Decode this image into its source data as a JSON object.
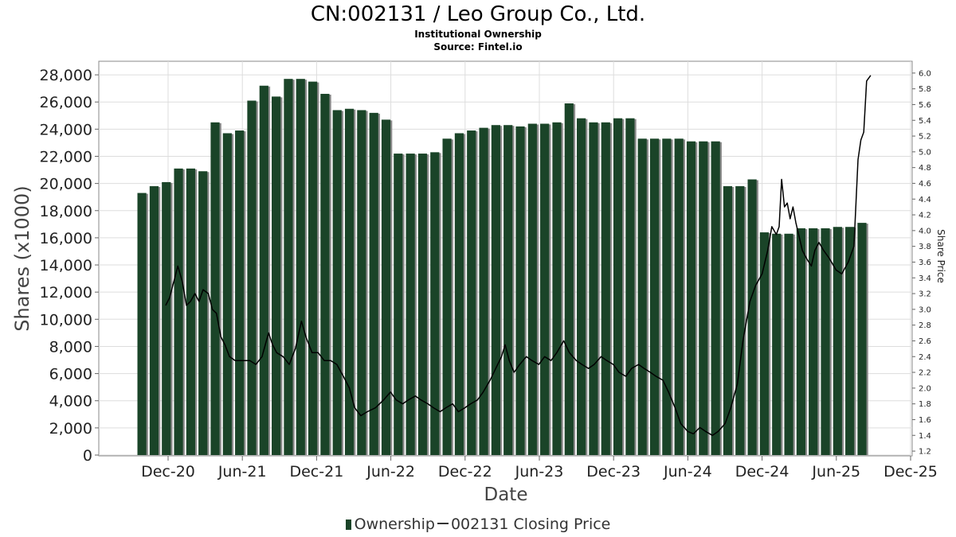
{
  "header": {
    "title": "CN:002131 / Leo Group Co., Ltd.",
    "subtitle1": "Institutional Ownership",
    "subtitle2": "Source: Fintel.io"
  },
  "legend": {
    "ownership_label": "Ownership",
    "price_label": "002131 Closing Price"
  },
  "colors": {
    "bar": "#1a4428",
    "bar_shadow": "#8a8a8a",
    "price_line": "#000000",
    "grid": "#dddddd"
  },
  "chart_data": {
    "type": "bar",
    "xlabel": "Date",
    "ylabel": "Shares (x1000)",
    "y2label": "Share Price",
    "ylim": [
      0,
      29000
    ],
    "y2lim": [
      1.15,
      6.15
    ],
    "x_tick_labels": [
      "Dec-20",
      "Jun-21",
      "Dec-21",
      "Jun-22",
      "Dec-22",
      "Jun-23",
      "Dec-23",
      "Jun-24",
      "Dec-24",
      "Jun-25",
      "Dec-25"
    ],
    "y_tick_labels": [
      "0",
      "2,000",
      "4,000",
      "6,000",
      "8,000",
      "10,000",
      "12,000",
      "14,000",
      "16,000",
      "18,000",
      "20,000",
      "22,000",
      "24,000",
      "26,000",
      "28,000"
    ],
    "y2_tick_labels": [
      "1.2",
      "1.4",
      "1.6",
      "1.8",
      "2.0",
      "2.2",
      "2.4",
      "2.6",
      "2.8",
      "3.0",
      "3.2",
      "3.4",
      "3.6",
      "3.8",
      "4.0",
      "4.2",
      "4.4",
      "4.6",
      "4.8",
      "5.0",
      "5.2",
      "5.4",
      "5.6",
      "5.8",
      "6.0"
    ],
    "grid": true,
    "legend_position": "bottom",
    "series": [
      {
        "name": "Ownership",
        "values": [
          19300,
          19800,
          20100,
          21100,
          21100,
          20900,
          24500,
          23700,
          23900,
          26100,
          27200,
          26400,
          27700,
          27700,
          27500,
          26600,
          25400,
          25500,
          25400,
          25200,
          24700,
          22200,
          22200,
          22200,
          22300,
          23300,
          23700,
          23900,
          24100,
          24300,
          24300,
          24200,
          24400,
          24400,
          24500,
          25900,
          24800,
          24500,
          24500,
          24800,
          24800,
          23300,
          23300,
          23300,
          23300,
          23100,
          23100,
          23100,
          19800,
          19800,
          20300,
          16400,
          16300,
          16300,
          16700,
          16700,
          16700,
          16800,
          16800,
          17100
        ]
      },
      {
        "name": "002131 Closing Price",
        "points": [
          [
            "2020-11-25",
            3.05
          ],
          [
            "2020-12-05",
            3.15
          ],
          [
            "2020-12-15",
            3.35
          ],
          [
            "2020-12-25",
            3.55
          ],
          [
            "2021-01-05",
            3.35
          ],
          [
            "2021-01-15",
            3.05
          ],
          [
            "2021-01-25",
            3.1
          ],
          [
            "2021-02-05",
            3.2
          ],
          [
            "2021-02-15",
            3.1
          ],
          [
            "2021-02-25",
            3.25
          ],
          [
            "2021-03-10",
            3.2
          ],
          [
            "2021-03-20",
            3.0
          ],
          [
            "2021-03-30",
            2.95
          ],
          [
            "2021-04-10",
            2.65
          ],
          [
            "2021-04-20",
            2.55
          ],
          [
            "2021-05-01",
            2.4
          ],
          [
            "2021-05-15",
            2.35
          ],
          [
            "2021-06-01",
            2.35
          ],
          [
            "2021-06-20",
            2.35
          ],
          [
            "2021-07-05",
            2.3
          ],
          [
            "2021-07-20",
            2.4
          ],
          [
            "2021-08-05",
            2.7
          ],
          [
            "2021-08-15",
            2.55
          ],
          [
            "2021-08-25",
            2.45
          ],
          [
            "2021-09-10",
            2.4
          ],
          [
            "2021-09-25",
            2.3
          ],
          [
            "2021-10-10",
            2.5
          ],
          [
            "2021-10-25",
            2.85
          ],
          [
            "2021-11-05",
            2.65
          ],
          [
            "2021-11-20",
            2.45
          ],
          [
            "2021-12-05",
            2.45
          ],
          [
            "2021-12-20",
            2.35
          ],
          [
            "2022-01-05",
            2.35
          ],
          [
            "2022-01-20",
            2.3
          ],
          [
            "2022-02-05",
            2.15
          ],
          [
            "2022-02-20",
            2.0
          ],
          [
            "2022-03-05",
            1.75
          ],
          [
            "2022-03-20",
            1.65
          ],
          [
            "2022-04-05",
            1.7
          ],
          [
            "2022-04-25",
            1.75
          ],
          [
            "2022-05-15",
            1.85
          ],
          [
            "2022-06-01",
            1.95
          ],
          [
            "2022-06-15",
            1.85
          ],
          [
            "2022-07-01",
            1.8
          ],
          [
            "2022-07-15",
            1.85
          ],
          [
            "2022-08-01",
            1.9
          ],
          [
            "2022-08-15",
            1.85
          ],
          [
            "2022-09-01",
            1.8
          ],
          [
            "2022-09-15",
            1.75
          ],
          [
            "2022-10-01",
            1.7
          ],
          [
            "2022-10-15",
            1.75
          ],
          [
            "2022-11-01",
            1.8
          ],
          [
            "2022-11-15",
            1.7
          ],
          [
            "2022-12-01",
            1.75
          ],
          [
            "2022-12-15",
            1.8
          ],
          [
            "2023-01-01",
            1.85
          ],
          [
            "2023-01-15",
            1.95
          ],
          [
            "2023-02-01",
            2.1
          ],
          [
            "2023-02-15",
            2.25
          ],
          [
            "2023-03-01",
            2.4
          ],
          [
            "2023-03-10",
            2.55
          ],
          [
            "2023-03-20",
            2.35
          ],
          [
            "2023-04-01",
            2.2
          ],
          [
            "2023-04-15",
            2.3
          ],
          [
            "2023-05-01",
            2.4
          ],
          [
            "2023-05-15",
            2.35
          ],
          [
            "2023-06-01",
            2.3
          ],
          [
            "2023-06-15",
            2.4
          ],
          [
            "2023-07-01",
            2.35
          ],
          [
            "2023-07-15",
            2.45
          ],
          [
            "2023-08-01",
            2.6
          ],
          [
            "2023-08-15",
            2.45
          ],
          [
            "2023-09-01",
            2.35
          ],
          [
            "2023-09-15",
            2.3
          ],
          [
            "2023-10-01",
            2.25
          ],
          [
            "2023-10-15",
            2.3
          ],
          [
            "2023-11-01",
            2.4
          ],
          [
            "2023-11-15",
            2.35
          ],
          [
            "2023-12-01",
            2.3
          ],
          [
            "2023-12-15",
            2.2
          ],
          [
            "2024-01-01",
            2.15
          ],
          [
            "2024-01-15",
            2.25
          ],
          [
            "2024-02-01",
            2.3
          ],
          [
            "2024-02-15",
            2.25
          ],
          [
            "2024-03-01",
            2.2
          ],
          [
            "2024-03-15",
            2.15
          ],
          [
            "2024-04-01",
            2.1
          ],
          [
            "2024-04-15",
            1.95
          ],
          [
            "2024-05-01",
            1.75
          ],
          [
            "2024-05-15",
            1.55
          ],
          [
            "2024-06-01",
            1.45
          ],
          [
            "2024-06-15",
            1.42
          ],
          [
            "2024-07-01",
            1.5
          ],
          [
            "2024-07-15",
            1.45
          ],
          [
            "2024-08-01",
            1.4
          ],
          [
            "2024-08-15",
            1.45
          ],
          [
            "2024-09-01",
            1.55
          ],
          [
            "2024-09-15",
            1.75
          ],
          [
            "2024-10-01",
            2.05
          ],
          [
            "2024-10-15",
            2.6
          ],
          [
            "2024-11-01",
            3.1
          ],
          [
            "2024-11-15",
            3.3
          ],
          [
            "2024-12-01",
            3.45
          ],
          [
            "2024-12-15",
            3.75
          ],
          [
            "2024-12-25",
            4.05
          ],
          [
            "2025-01-05",
            3.95
          ],
          [
            "2025-01-12",
            4.05
          ],
          [
            "2025-01-18",
            4.65
          ],
          [
            "2025-01-25",
            4.3
          ],
          [
            "2025-02-01",
            4.35
          ],
          [
            "2025-02-08",
            4.15
          ],
          [
            "2025-02-15",
            4.3
          ],
          [
            "2025-02-22",
            4.1
          ],
          [
            "2025-03-01",
            3.95
          ],
          [
            "2025-03-10",
            3.75
          ],
          [
            "2025-03-20",
            3.65
          ],
          [
            "2025-04-01",
            3.55
          ],
          [
            "2025-04-10",
            3.75
          ],
          [
            "2025-04-20",
            3.85
          ],
          [
            "2025-05-01",
            3.75
          ],
          [
            "2025-05-15",
            3.65
          ],
          [
            "2025-06-01",
            3.5
          ],
          [
            "2025-06-15",
            3.45
          ],
          [
            "2025-07-01",
            3.6
          ],
          [
            "2025-07-15",
            3.8
          ],
          [
            "2025-07-25",
            4.9
          ],
          [
            "2025-08-01",
            5.15
          ],
          [
            "2025-08-08",
            5.25
          ],
          [
            "2025-08-15",
            5.9
          ],
          [
            "2025-08-25",
            5.97
          ]
        ]
      }
    ]
  }
}
